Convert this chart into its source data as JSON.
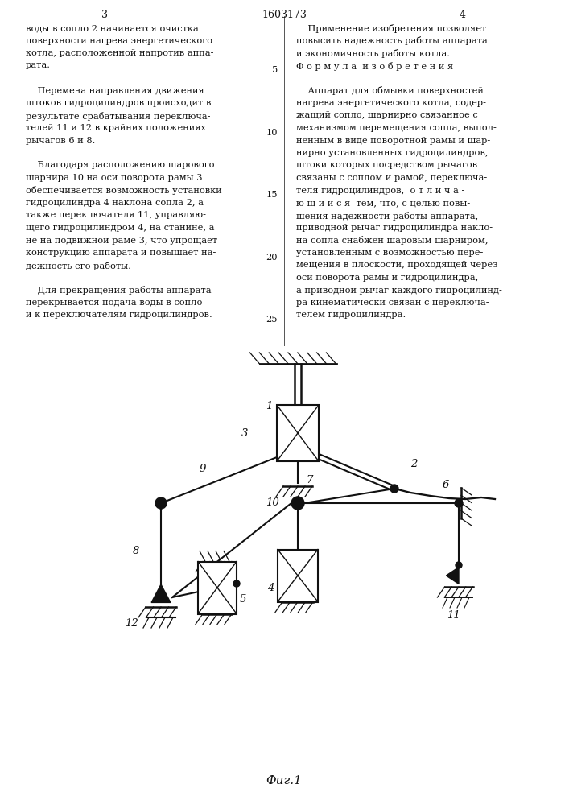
{
  "page_number_left": "3",
  "page_number_center": "1603173",
  "page_number_right": "4",
  "text_left": [
    "воды в сопло 2 начинается очистка",
    "поверхности нагрева энергетического",
    "котла, расположенной напротив аппа-",
    "рата.",
    "",
    "    Перемена направления движения",
    "штоков гидроцилиндров происходит в",
    "результате срабатывания переключа-",
    "телей 11 и 12 в крайних положениях",
    "рычагов 6 и 8.",
    "",
    "    Благодаря расположению шарового",
    "шарнира 10 на оси поворота рамы 3",
    "обеспечивается возможность установки",
    "гидроцилиндра 4 наклона сопла 2, а",
    "также переключателя 11, управляю-",
    "щего гидроцилиндром 4, на станине, а",
    "не на подвижной раме 3, что упрощает",
    "конструкцию аппарата и повышает на-",
    "дежность его работы.",
    "",
    "    Для прекращения работы аппарата",
    "перекрывается подача воды в сопло",
    "и к переключателям гидроцилиндров."
  ],
  "text_right": [
    "    Применение изобретения позволяет",
    "повысить надежность работы аппарата",
    "и экономичность работы котла.",
    "Ф о р м у л а  и з о б р е т е н и я",
    "",
    "    Аппарат для обмывки поверхностей",
    "нагрева энергетического котла, содер-",
    "жащий сопло, шарнирно связанное с",
    "механизмом перемещения сопла, выпол-",
    "ненным в виде поворотной рамы и шар-",
    "нирно установленных гидроцилиндров,",
    "штоки которых посредством рычагов",
    "связаны с соплом и рамой, переключа-",
    "теля гидроцилиндров,  о т л и ч а -",
    "ю щ и й с я  тем, что, с целью повы-",
    "шения надежности работы аппарата,",
    "приводной рычаг гидроцилиндра накло-",
    "на сопла снабжен шаровым шарниром,",
    "установленным с возможностью пере-",
    "мещения в плоскости, проходящей через",
    "оси поворота рамы и гидроцилиндра,",
    "а приводной рычаг каждого гидроцилинд-",
    "ра кинематически связан с переключа-",
    "телем гидроцилиндра."
  ],
  "line_numbers": [
    5,
    10,
    15,
    20,
    25
  ],
  "caption": "Фиг.1",
  "bg_color": "#ffffff",
  "lc": "#111111"
}
